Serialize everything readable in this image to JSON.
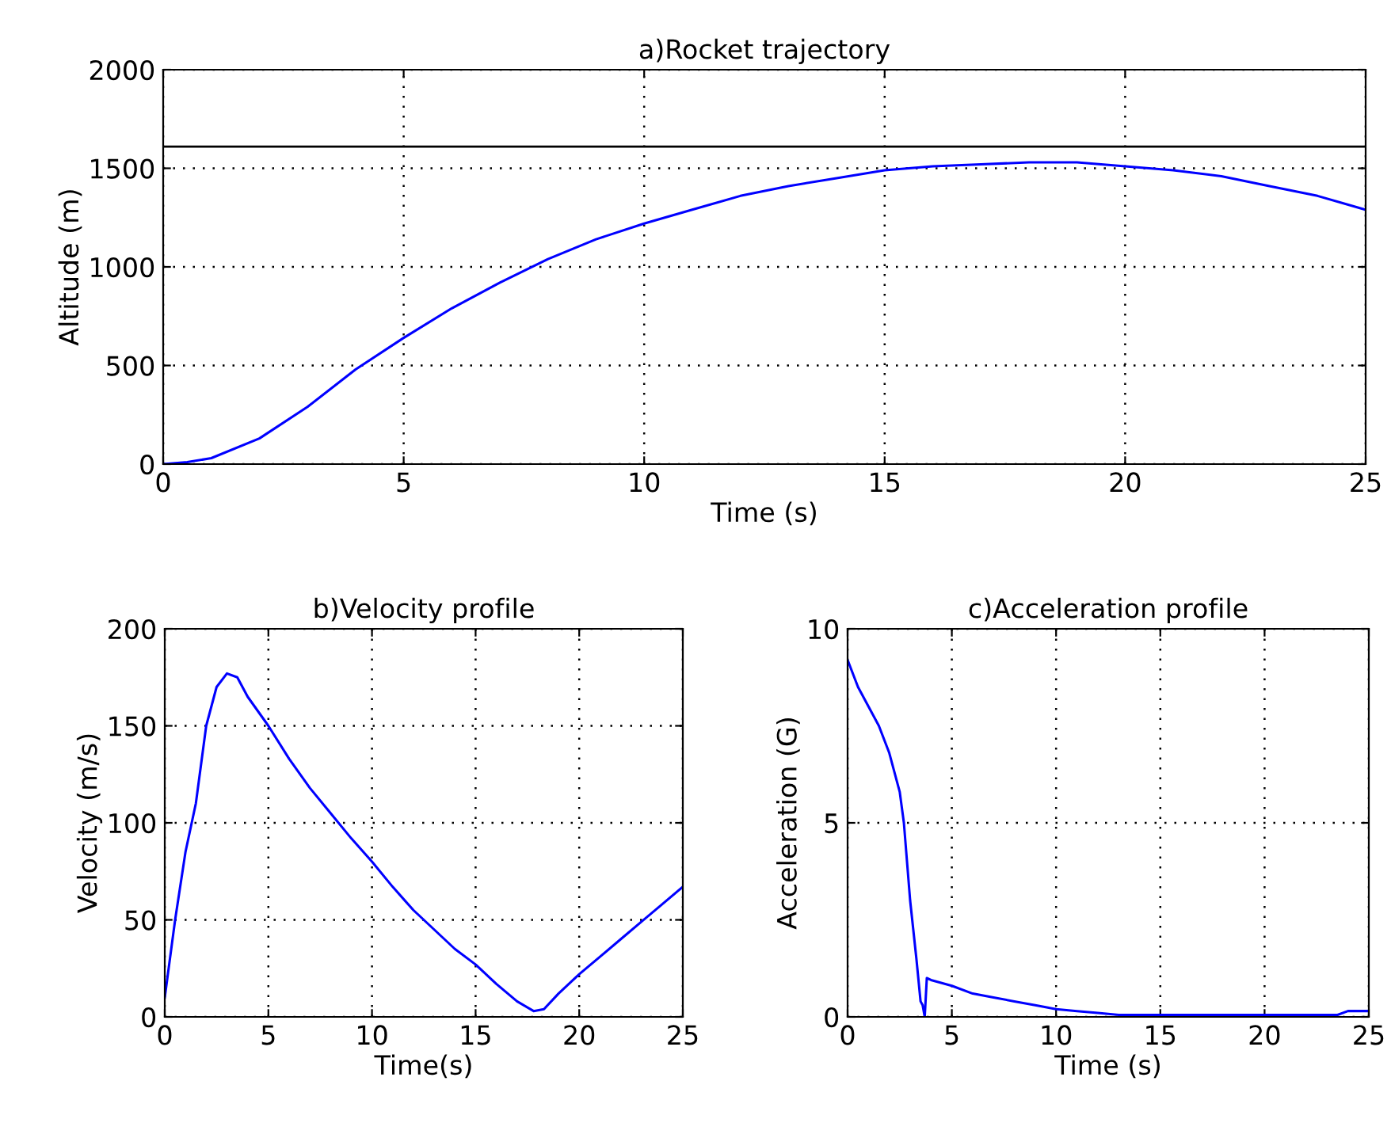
{
  "chart_data": [
    {
      "type": "line",
      "title": "a)Rocket trajectory",
      "xlabel": "Time (s)",
      "ylabel": "Altitude (m)",
      "xlim": [
        0,
        25
      ],
      "ylim": [
        0,
        2000
      ],
      "xticks": [
        0,
        5,
        10,
        15,
        20,
        25
      ],
      "yticks": [
        0,
        500,
        1000,
        1500,
        2000
      ],
      "grid": true,
      "line_style": "solid",
      "marker": "none",
      "x": [
        0,
        0.5,
        1,
        2,
        3,
        4,
        5,
        6,
        7,
        8,
        9,
        10,
        11,
        12,
        13,
        14,
        15,
        16,
        17,
        18,
        19,
        20,
        21,
        22,
        23,
        24,
        25
      ],
      "series": [
        {
          "color": "#0000ff",
          "values": [
            0,
            10,
            30,
            130,
            290,
            480,
            640,
            790,
            920,
            1040,
            1140,
            1220,
            1290,
            1360,
            1410,
            1450,
            1490,
            1510,
            1520,
            1530,
            1530,
            1510,
            1490,
            1460,
            1410,
            1360,
            1290
          ]
        }
      ],
      "ref_lines": [
        {
          "axis": "y",
          "value": 1610,
          "color": "#000000",
          "line_style": "solid"
        }
      ]
    },
    {
      "type": "line",
      "title": "b)Velocity profile",
      "xlabel": "Time(s)",
      "ylabel": "Velocity (m/s)",
      "xlim": [
        0,
        25
      ],
      "ylim": [
        0,
        200
      ],
      "xticks": [
        0,
        5,
        10,
        15,
        20,
        25
      ],
      "yticks": [
        0,
        50,
        100,
        150,
        200
      ],
      "grid": true,
      "line_style": "solid",
      "marker": "none",
      "x": [
        0,
        0.5,
        1,
        1.5,
        2,
        2.5,
        3,
        3.5,
        4,
        5,
        6,
        7,
        8,
        9,
        10,
        11,
        12,
        13,
        14,
        15,
        16,
        17,
        17.8,
        18.3,
        19,
        20,
        21,
        22,
        23,
        24,
        25
      ],
      "series": [
        {
          "color": "#0000ff",
          "values": [
            10,
            50,
            85,
            110,
            150,
            170,
            177,
            175,
            165,
            150,
            133,
            118,
            105,
            92,
            80,
            67,
            55,
            45,
            35,
            27,
            17,
            8,
            3,
            4,
            12,
            22,
            31,
            40,
            49,
            58,
            67
          ]
        }
      ]
    },
    {
      "type": "line",
      "title": "c)Acceleration profile",
      "xlabel": "Time (s)",
      "ylabel": "Acceleration (G)",
      "xlim": [
        0,
        25
      ],
      "ylim": [
        0,
        10
      ],
      "xticks": [
        0,
        5,
        10,
        15,
        20,
        25
      ],
      "yticks": [
        0,
        5,
        10
      ],
      "grid": true,
      "line_style": "solid",
      "marker": "none",
      "x": [
        0,
        0.5,
        1,
        1.5,
        2,
        2.5,
        2.7,
        3,
        3.3,
        3.5,
        3.6,
        3.7,
        3.8,
        4,
        5,
        6,
        7,
        8,
        9,
        10,
        11,
        12,
        13,
        15,
        20,
        23.5,
        24,
        25
      ],
      "series": [
        {
          "color": "#0000ff",
          "values": [
            9.2,
            8.5,
            8,
            7.5,
            6.8,
            5.8,
            5,
            3,
            1.5,
            0.4,
            0.3,
            0,
            1,
            0.95,
            0.8,
            0.6,
            0.5,
            0.4,
            0.3,
            0.2,
            0.15,
            0.1,
            0.05,
            0.05,
            0.05,
            0.05,
            0.15,
            0.15
          ]
        }
      ]
    }
  ]
}
